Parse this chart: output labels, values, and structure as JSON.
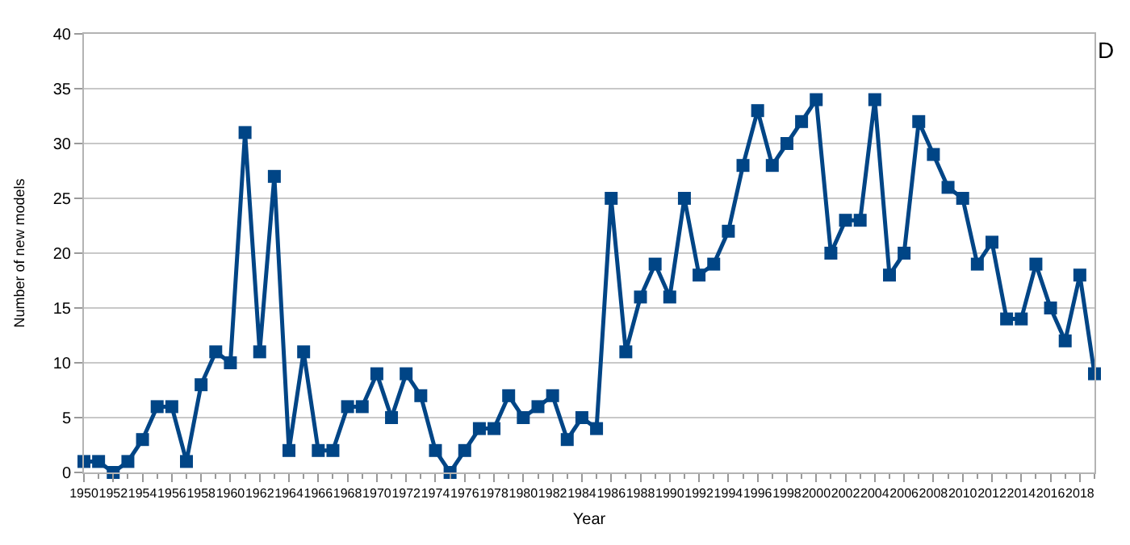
{
  "chart_data": {
    "type": "line",
    "xlabel": "Year",
    "ylabel": "Number of new models",
    "x": [
      1950,
      1951,
      1952,
      1953,
      1954,
      1955,
      1956,
      1957,
      1958,
      1959,
      1960,
      1961,
      1962,
      1963,
      1964,
      1965,
      1966,
      1967,
      1968,
      1969,
      1970,
      1971,
      1972,
      1973,
      1974,
      1975,
      1976,
      1977,
      1978,
      1979,
      1980,
      1981,
      1982,
      1983,
      1984,
      1985,
      1986,
      1987,
      1988,
      1989,
      1990,
      1991,
      1992,
      1993,
      1994,
      1995,
      1996,
      1997,
      1998,
      1999,
      2000,
      2001,
      2002,
      2003,
      2004,
      2005,
      2006,
      2007,
      2008,
      2009,
      2010,
      2011,
      2012,
      2013,
      2014,
      2015,
      2016,
      2017,
      2018,
      2019
    ],
    "series": [
      {
        "color": "#004586",
        "values": [
          1,
          1,
          0,
          1,
          3,
          6,
          6,
          1,
          8,
          11,
          10,
          31,
          11,
          27,
          2,
          11,
          2,
          2,
          6,
          6,
          9,
          5,
          9,
          7,
          2,
          0,
          2,
          4,
          4,
          7,
          5,
          6,
          7,
          3,
          5,
          4,
          25,
          11,
          16,
          19,
          16,
          25,
          18,
          19,
          22,
          28,
          33,
          28,
          30,
          32,
          34,
          20,
          23,
          23,
          34,
          18,
          20,
          32,
          29,
          26,
          25,
          19,
          21,
          14,
          14,
          19,
          15,
          12,
          18,
          9
        ]
      }
    ],
    "xlim": [
      1950,
      2019
    ],
    "xticks": [
      1950,
      1952,
      1954,
      1956,
      1958,
      1960,
      1962,
      1964,
      1966,
      1968,
      1970,
      1972,
      1974,
      1976,
      1978,
      1980,
      1982,
      1984,
      1986,
      1988,
      1990,
      1992,
      1994,
      1996,
      1998,
      2000,
      2002,
      2004,
      2006,
      2008,
      2010,
      2012,
      2014,
      2016,
      2018
    ],
    "ylim": [
      0,
      40
    ],
    "yticks": [
      0,
      5,
      10,
      15,
      20,
      25,
      30,
      35,
      40
    ],
    "grid": "y",
    "marker": "square",
    "line_style": "solid",
    "legend": false,
    "annotations": [
      "D"
    ]
  }
}
